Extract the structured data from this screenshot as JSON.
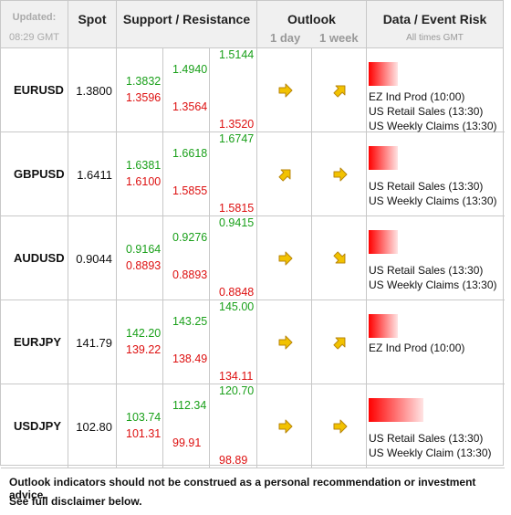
{
  "header": {
    "updated_label": "Updated:",
    "time": "08:29 GMT",
    "spot": "Spot",
    "support_resistance": "Support / Resistance",
    "outlook": "Outlook",
    "outlook_1day": "1 day",
    "outlook_1week": "1 week",
    "data_event_risk": "Data / Event Risk",
    "all_times": "All times GMT"
  },
  "rows": [
    {
      "pair": "EURUSD",
      "spot": "1.3800",
      "levels": {
        "c1_res": "1.3832",
        "c1_sup": "1.3596",
        "c2_res": "1.4940",
        "c2_sup": "1.3564",
        "c3_res": "1.5144",
        "c3_sup": "1.3520"
      },
      "outlook_1day": "right",
      "outlook_1week": "up-right",
      "risk_level": 0.22,
      "events": [
        "EZ Ind Prod (10:00)",
        "US Retail Sales (13:30)",
        "US Weekly Claims (13:30)"
      ]
    },
    {
      "pair": "GBPUSD",
      "spot": "1.6411",
      "levels": {
        "c1_res": "1.6381",
        "c1_sup": "1.6100",
        "c2_res": "1.6618",
        "c2_sup": "1.5855",
        "c3_res": "1.6747",
        "c3_sup": "1.5815"
      },
      "outlook_1day": "up-right",
      "outlook_1week": "right",
      "risk_level": 0.22,
      "events": [
        "US Retail Sales (13:30)",
        "US Weekly Claims (13:30)"
      ]
    },
    {
      "pair": "AUDUSD",
      "spot": "0.9044",
      "levels": {
        "c1_res": "0.9164",
        "c1_sup": "0.8893",
        "c2_res": "0.9276",
        "c2_sup": "0.8893",
        "c3_res": "0.9415",
        "c3_sup": "0.8848"
      },
      "outlook_1day": "right",
      "outlook_1week": "down-right",
      "risk_level": 0.22,
      "events": [
        "US Retail Sales (13:30)",
        "US Weekly Claims (13:30)"
      ]
    },
    {
      "pair": "EURJPY",
      "spot": "141.79",
      "levels": {
        "c1_res": "142.20",
        "c1_sup": "139.22",
        "c2_res": "143.25",
        "c2_sup": "138.49",
        "c3_res": "145.00",
        "c3_sup": "134.11"
      },
      "outlook_1day": "right",
      "outlook_1week": "up-right",
      "risk_level": 0.22,
      "events": [
        "EZ Ind Prod (10:00)"
      ]
    },
    {
      "pair": "USDJPY",
      "spot": "102.80",
      "levels": {
        "c1_res": "103.74",
        "c1_sup": "101.31",
        "c2_res": "112.34",
        "c2_sup": "99.91",
        "c3_res": "120.70",
        "c3_sup": "98.89"
      },
      "outlook_1day": "right",
      "outlook_1week": "right",
      "risk_level": 0.41,
      "events": [
        "US Retail Sales (13:30)",
        "US Weekly Claim (13:30)"
      ]
    }
  ],
  "footer": {
    "line1": "Outlook indicators should not be construed as a personal recommendation or investment advice.",
    "line2": "See full disclaimer below."
  },
  "colors": {
    "support": "#dd1010",
    "resistance": "#1aa01a",
    "arrow": "#f2c200",
    "risk": "#ff0000"
  }
}
